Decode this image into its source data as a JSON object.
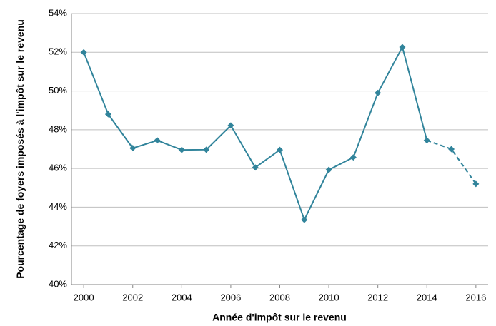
{
  "chart_data": {
    "type": "line",
    "xlabel": "Année d'impôt sur le revenu",
    "ylabel": "Pourcentage de foyers imposés à l'impôt sur le revenu",
    "x": [
      2000,
      2001,
      2002,
      2003,
      2004,
      2005,
      2006,
      2007,
      2008,
      2009,
      2010,
      2011,
      2012,
      2013,
      2014,
      2015,
      2016
    ],
    "series": [
      {
        "color": "#31849b",
        "values": [
          52.0,
          48.8,
          47.05,
          47.45,
          46.96,
          46.97,
          48.22,
          46.05,
          46.96,
          43.35,
          45.93,
          46.57,
          49.9,
          52.27,
          47.45,
          47.0,
          45.2
        ]
      }
    ],
    "dashed_from_x": 2014,
    "xlim": [
      1999.5,
      2016.5
    ],
    "xticks": [
      2000,
      2002,
      2004,
      2006,
      2008,
      2010,
      2012,
      2014,
      2016
    ],
    "ylim": [
      40,
      54
    ],
    "yticks": [
      {
        "value": 40,
        "label": "40%"
      },
      {
        "value": 42,
        "label": "42%"
      },
      {
        "value": 44,
        "label": "44%"
      },
      {
        "value": 46,
        "label": "46%"
      },
      {
        "value": 48,
        "label": "48%"
      },
      {
        "value": 50,
        "label": "50%"
      },
      {
        "value": 52,
        "label": "52%"
      },
      {
        "value": 54,
        "label": "54%"
      }
    ],
    "grid": true
  }
}
